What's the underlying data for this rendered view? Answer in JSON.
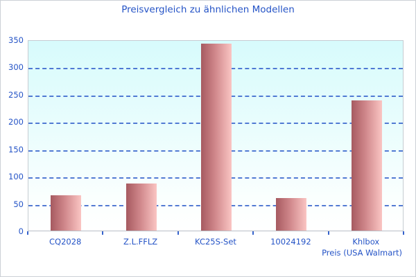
{
  "chart_data": {
    "type": "bar",
    "title": "Preisvergleich zu ähnlichen Modellen",
    "categories": [
      "CQ2028",
      "Z.L.FFLZ",
      "KC25S-Set",
      "10024192",
      "Khlbox"
    ],
    "values": [
      65,
      86,
      343,
      60,
      238
    ],
    "xlabel": "Preis (USA Walmart)",
    "ylabel": "",
    "ylim": [
      0,
      350
    ],
    "ytick_step": 50,
    "grid": "horizontal-dashed",
    "legend_position": "none"
  },
  "colors": {
    "text_blue": "#2453c6",
    "grid_blue": "#3663cc",
    "bar_gradient_start": "#a65a60",
    "bar_gradient_mid": "#cf868a",
    "bar_gradient_end": "#fac5c3",
    "plot_bg_top": "#d7fbfc",
    "plot_bg_bottom": "#ffffff",
    "plot_border": "#c6ccd2",
    "figure_border": "#ccd0d6"
  }
}
